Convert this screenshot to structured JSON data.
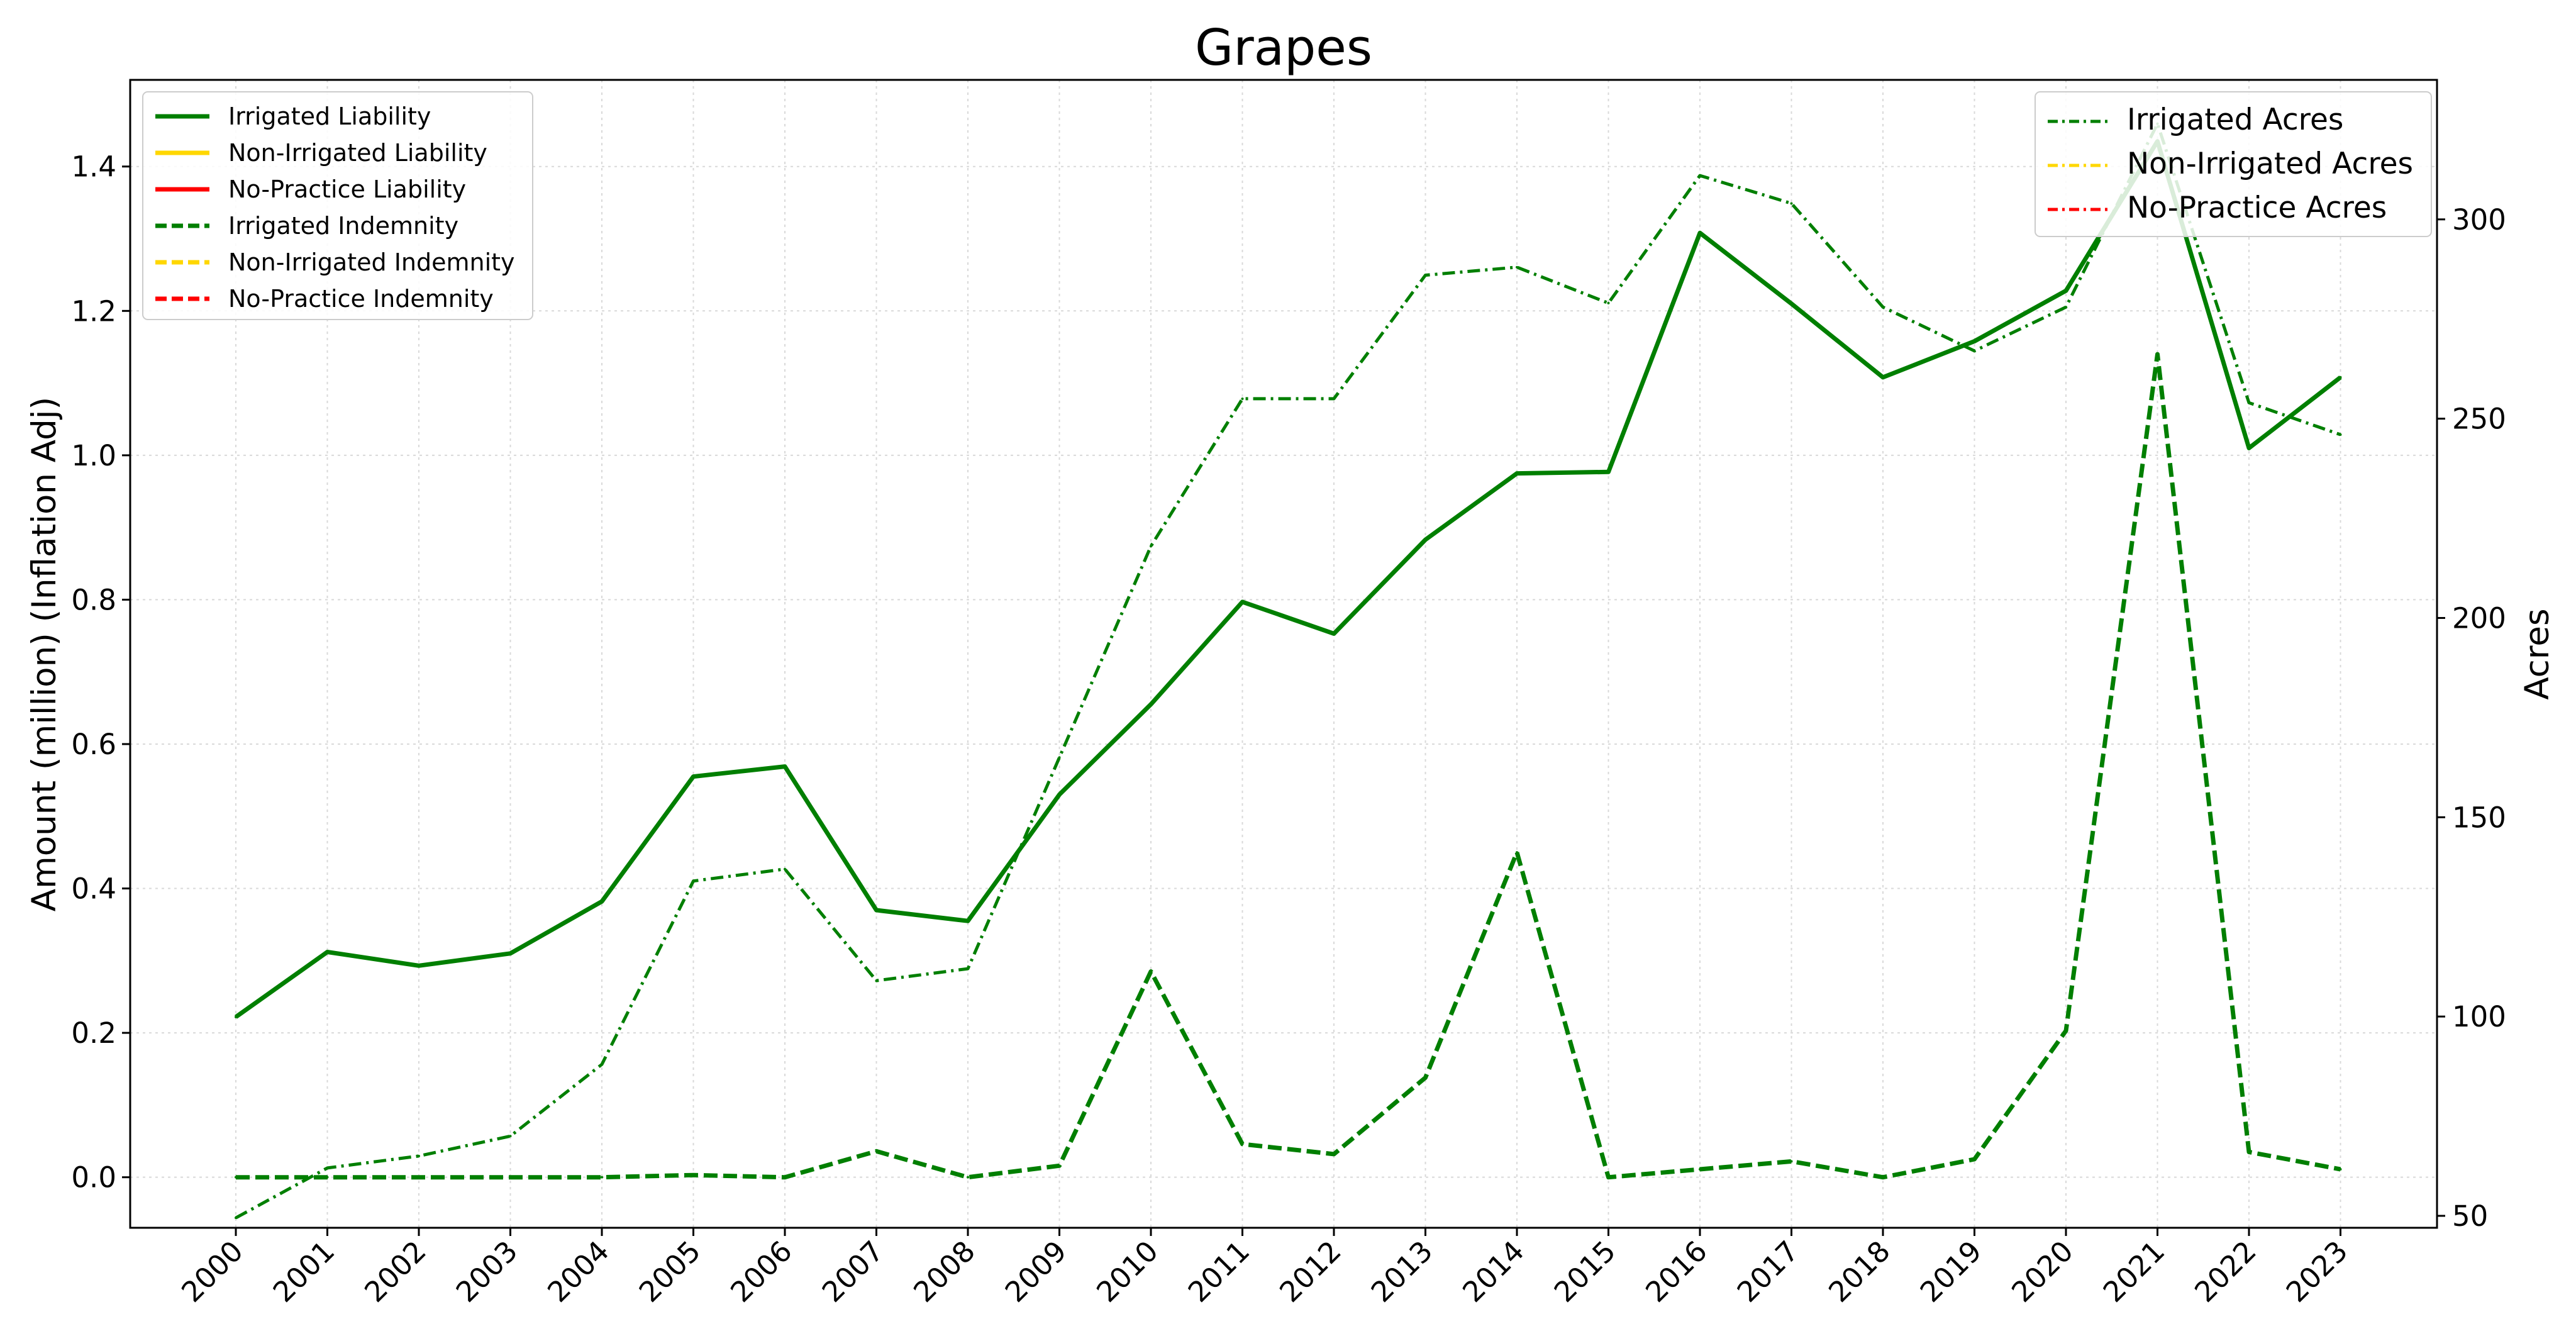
{
  "chart_data": {
    "type": "line",
    "title": "Grapes",
    "xlabel": "",
    "ylabel": "Amount (million) (Inflation Adj)",
    "y2label": "Acres",
    "x": [
      "2000",
      "2001",
      "2002",
      "2003",
      "2004",
      "2005",
      "2006",
      "2007",
      "2008",
      "2009",
      "2010",
      "2011",
      "2012",
      "2013",
      "2014",
      "2015",
      "2016",
      "2017",
      "2018",
      "2019",
      "2020",
      "2021",
      "2022",
      "2023"
    ],
    "ylim": [
      -0.07,
      1.52
    ],
    "y2lim": [
      47,
      335
    ],
    "yticks": [
      "0.0",
      "0.2",
      "0.4",
      "0.6",
      "0.8",
      "1.0",
      "1.2",
      "1.4"
    ],
    "y2ticks": [
      "50",
      "100",
      "150",
      "200",
      "250",
      "300"
    ],
    "grid": true,
    "legend_left": {
      "placement": "upper-left",
      "entries": [
        {
          "label": "Irrigated Liability",
          "color": "#007f00",
          "style": "solid"
        },
        {
          "label": "Non-Irrigated Liability",
          "color": "#ffd700",
          "style": "solid"
        },
        {
          "label": "No-Practice Liability",
          "color": "#ff0000",
          "style": "solid"
        },
        {
          "label": "Irrigated Indemnity",
          "color": "#007f00",
          "style": "dashed"
        },
        {
          "label": "Non-Irrigated Indemnity",
          "color": "#ffd700",
          "style": "dashed"
        },
        {
          "label": "No-Practice Indemnity",
          "color": "#ff0000",
          "style": "dashed"
        }
      ]
    },
    "legend_right": {
      "placement": "upper-right",
      "entries": [
        {
          "label": "Irrigated Acres",
          "color": "#007f00",
          "style": "dashdot"
        },
        {
          "label": "Non-Irrigated Acres",
          "color": "#ffd700",
          "style": "dashdot"
        },
        {
          "label": "No-Practice Acres",
          "color": "#ff0000",
          "style": "dashdot"
        }
      ]
    },
    "series": [
      {
        "name": "Irrigated Liability",
        "axis": "left",
        "color": "#007f00",
        "style": "solid",
        "values": [
          0.222,
          0.312,
          0.293,
          0.31,
          0.382,
          0.555,
          0.569,
          0.37,
          0.355,
          0.53,
          0.655,
          0.797,
          0.753,
          0.883,
          0.975,
          0.977,
          1.308,
          1.21,
          1.108,
          1.158,
          1.228,
          1.435,
          1.01,
          1.108
        ]
      },
      {
        "name": "Irrigated Indemnity",
        "axis": "left",
        "color": "#007f00",
        "style": "dashed",
        "values": [
          0.0,
          0.0,
          0.0,
          0.0,
          0.0,
          0.003,
          0.0,
          0.036,
          0.0,
          0.016,
          0.285,
          0.046,
          0.032,
          0.138,
          0.45,
          0.0,
          0.011,
          0.022,
          0.0,
          0.025,
          0.203,
          1.14,
          0.035,
          0.011
        ]
      },
      {
        "name": "Irrigated Acres",
        "axis": "right",
        "color": "#007f00",
        "style": "dashdot",
        "values": [
          49.5,
          62,
          65,
          70,
          88,
          134,
          137,
          109,
          112,
          165,
          218,
          255,
          255,
          286,
          288,
          279,
          311,
          304,
          278,
          267,
          278,
          324,
          254,
          246
        ]
      }
    ]
  }
}
